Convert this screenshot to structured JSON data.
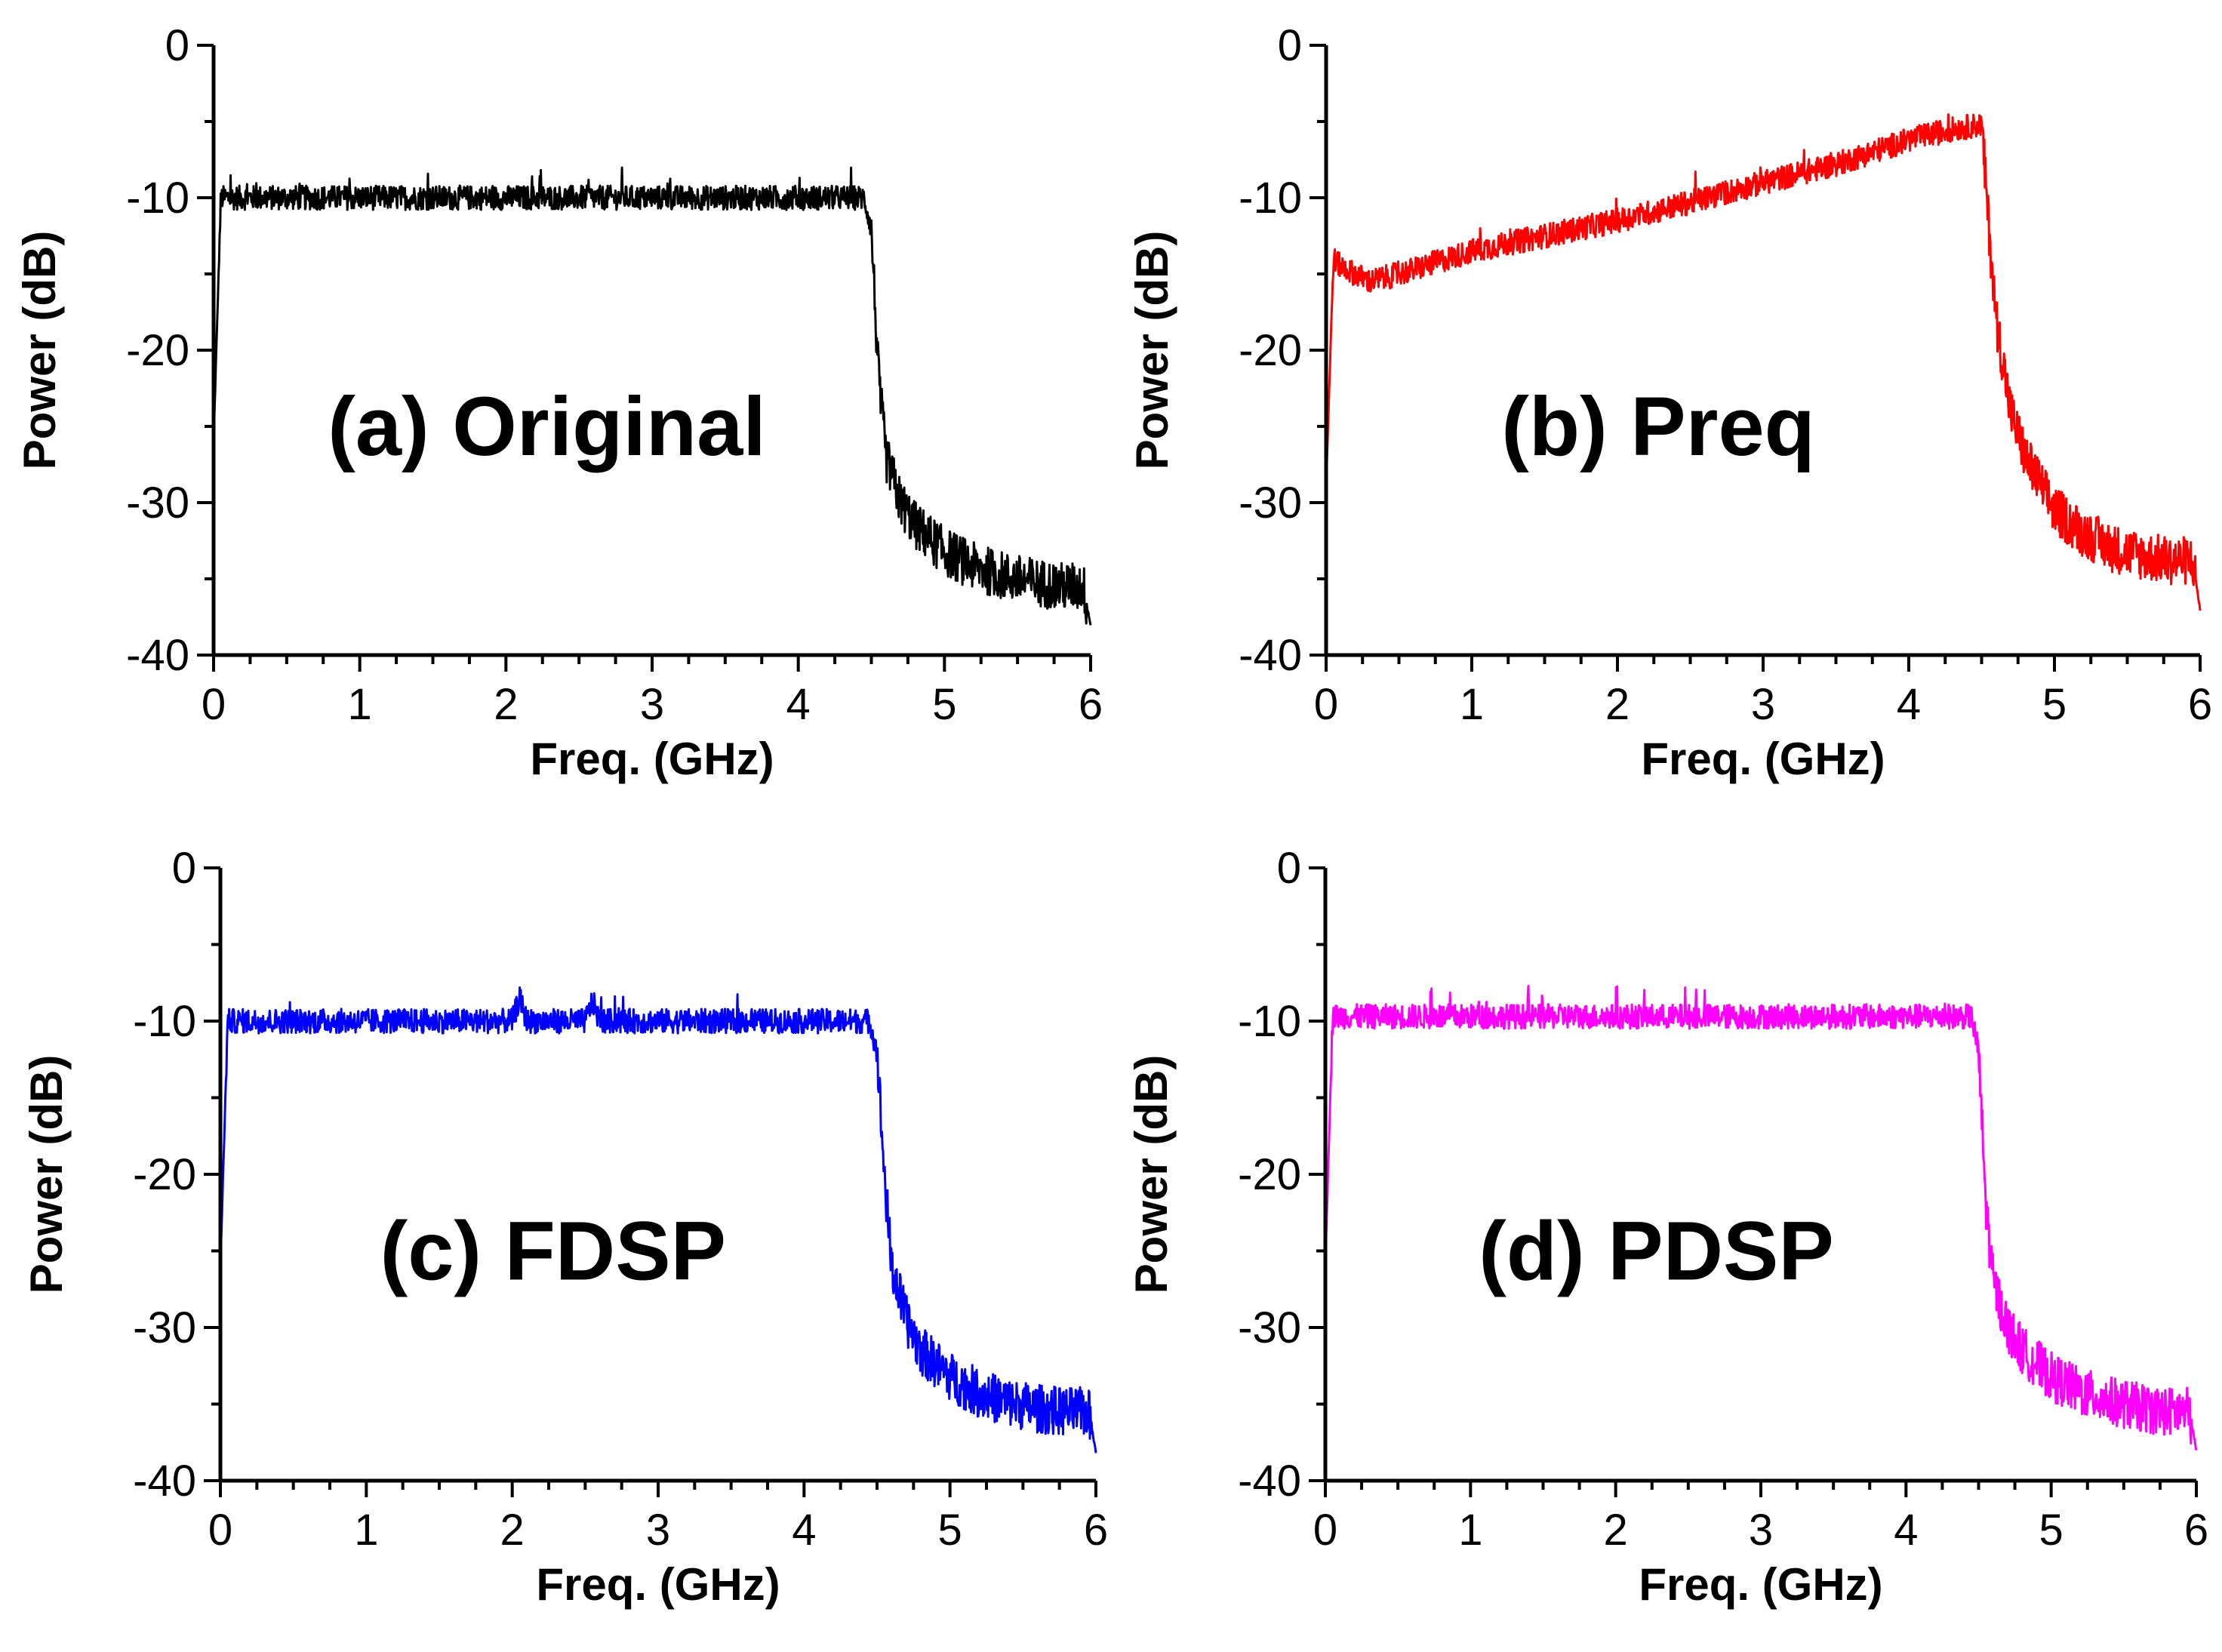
{
  "chart_data": [
    {
      "type": "line",
      "title": "(a) Original",
      "xlabel": "Freq. (GHz)",
      "ylabel": "Power (dB)",
      "xlim": [
        0,
        6
      ],
      "ylim": [
        -40,
        0
      ],
      "xticks": [
        "0",
        "1",
        "2",
        "3",
        "4",
        "5",
        "6"
      ],
      "yticks": [
        "0",
        "-10",
        "-20",
        "-30",
        "-40"
      ],
      "color": "#000000",
      "x": [
        0,
        0.05,
        0.5,
        1,
        1.5,
        2,
        2.5,
        3,
        3.5,
        4,
        4.45,
        4.5,
        4.55,
        4.6,
        4.7,
        4.8,
        5,
        5.2,
        5.4,
        5.6,
        5.8,
        5.95,
        6
      ],
      "y": [
        -26,
        -10,
        -10,
        -10,
        -10,
        -10,
        -10,
        -10,
        -10,
        -10,
        -10,
        -12,
        -22,
        -27,
        -30,
        -31.5,
        -33.2,
        -34.2,
        -34.8,
        -35.2,
        -35.5,
        -35.5,
        -38
      ]
    },
    {
      "type": "line",
      "title": "(b) Preq",
      "xlabel": "Freq. (GHz)",
      "ylabel": "Power (dB)",
      "xlim": [
        0,
        6
      ],
      "ylim": [
        -40,
        0
      ],
      "xticks": [
        "0",
        "1",
        "2",
        "3",
        "4",
        "5",
        "6"
      ],
      "yticks": [
        "0",
        "-10",
        "-20",
        "-30",
        "-40"
      ],
      "color": "#ff0000",
      "x": [
        0,
        0.05,
        0.1,
        0.3,
        0.5,
        1,
        1.5,
        2,
        2.5,
        3,
        3.5,
        4,
        4.3,
        4.5,
        4.55,
        4.6,
        4.7,
        4.8,
        5,
        5.2,
        5.4,
        5.6,
        5.8,
        5.95,
        6
      ],
      "y": [
        -29,
        -14,
        -14.5,
        -15.5,
        -15,
        -13.5,
        -12.5,
        -11.5,
        -10.3,
        -9,
        -7.8,
        -6.2,
        -5.5,
        -5.2,
        -12,
        -18,
        -24,
        -27,
        -30.5,
        -32,
        -33,
        -33.5,
        -33.8,
        -33.8,
        -37
      ]
    },
    {
      "type": "line",
      "title": "(c) FDSP",
      "xlabel": "Freq. (GHz)",
      "ylabel": "Power (dB)",
      "xlim": [
        0,
        6
      ],
      "ylim": [
        -40,
        0
      ],
      "xticks": [
        "0",
        "1",
        "2",
        "3",
        "4",
        "5",
        "6"
      ],
      "yticks": [
        "0",
        "-10",
        "-20",
        "-30",
        "-40"
      ],
      "color": "#0000ff",
      "x": [
        0,
        0.05,
        0.5,
        1,
        1.5,
        2,
        2.05,
        2.1,
        2.5,
        2.55,
        2.6,
        3,
        3.5,
        4,
        4.45,
        4.5,
        4.55,
        4.6,
        4.7,
        4.8,
        5,
        5.2,
        5.4,
        5.6,
        5.8,
        5.95,
        6
      ],
      "y": [
        -26,
        -10,
        -10,
        -10,
        -10,
        -10,
        -8.5,
        -10,
        -10,
        -8.7,
        -10,
        -10,
        -10,
        -10,
        -10,
        -12,
        -20,
        -26,
        -29.5,
        -31.5,
        -33.2,
        -34.3,
        -34.9,
        -35.3,
        -35.5,
        -35.5,
        -38
      ]
    },
    {
      "type": "line",
      "title": "(d) PDSP",
      "xlabel": "Freq. (GHz)",
      "ylabel": "Power (dB)",
      "xlim": [
        0,
        6
      ],
      "ylim": [
        -40,
        0
      ],
      "xticks": [
        "0",
        "1",
        "2",
        "3",
        "4",
        "5",
        "6"
      ],
      "yticks": [
        "0",
        "-10",
        "-20",
        "-30",
        "-40"
      ],
      "color": "#ff00ff",
      "x": [
        0,
        0.05,
        0.5,
        1,
        1.5,
        2,
        2.5,
        3,
        3.5,
        4,
        4.45,
        4.5,
        4.55,
        4.6,
        4.7,
        4.8,
        5,
        5.2,
        5.4,
        5.6,
        5.8,
        5.95,
        6
      ],
      "y": [
        -26,
        -9.7,
        -9.7,
        -9.7,
        -9.7,
        -9.7,
        -9.7,
        -9.7,
        -9.7,
        -9.7,
        -9.7,
        -12,
        -22,
        -27,
        -30,
        -31.5,
        -33.2,
        -34.2,
        -34.8,
        -35.2,
        -35.5,
        -35.5,
        -38
      ]
    }
  ]
}
